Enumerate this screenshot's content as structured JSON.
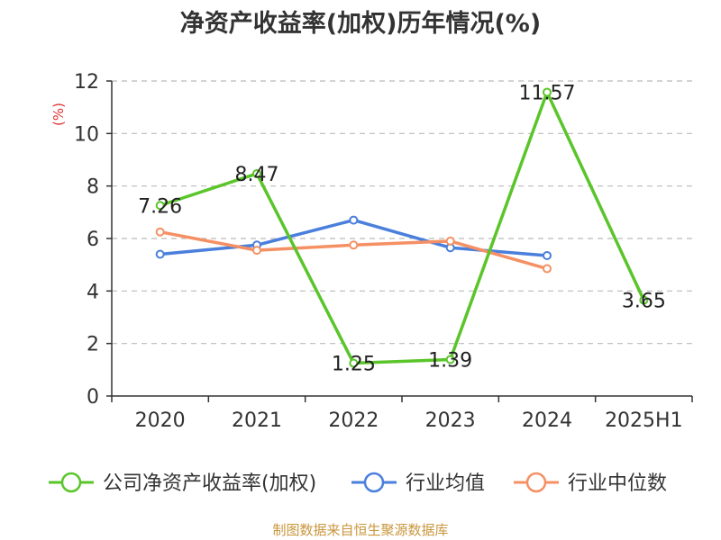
{
  "title": "净资产收益率(加权)历年情况(%)",
  "source": "制图数据来自恒生聚源数据库",
  "colors": {
    "unit": "#e03030",
    "source": "#c8963c",
    "axis": "#333333",
    "grid": "#bbbbbb"
  },
  "chart_data": {
    "type": "line",
    "title": "净资产收益率(加权)历年情况(%)",
    "ylabel": "(%)",
    "ylim": [
      0,
      12
    ],
    "yticks": [
      0,
      2,
      4,
      6,
      8,
      10,
      12
    ],
    "grid": true,
    "legend_position": "bottom",
    "categories": [
      "2020",
      "2021",
      "2022",
      "2023",
      "2024",
      "2025H1"
    ],
    "series": [
      {
        "name": "公司净资产收益率(加权)",
        "color": "#5ac52a",
        "values": [
          7.26,
          8.47,
          1.25,
          1.39,
          11.57,
          3.65
        ],
        "labels": [
          "7.26",
          "8.47",
          "1.25",
          "1.39",
          "11.57",
          "3.65"
        ]
      },
      {
        "name": "行业均值",
        "color": "#4a7fdc",
        "values": [
          5.4,
          5.75,
          6.7,
          5.65,
          5.35,
          null
        ]
      },
      {
        "name": "行业中位数",
        "color": "#f59064",
        "values": [
          6.25,
          5.55,
          5.75,
          5.9,
          4.85,
          null
        ]
      }
    ]
  }
}
